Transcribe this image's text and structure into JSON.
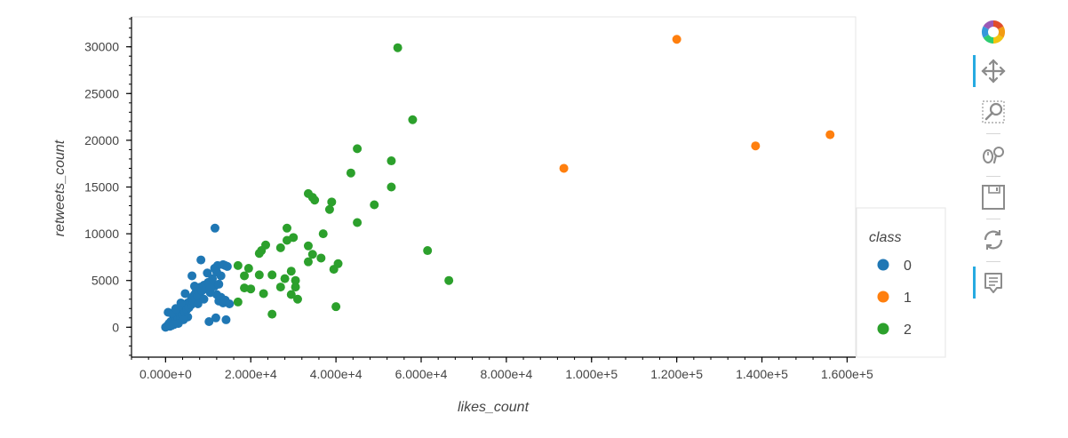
{
  "chart_data": {
    "type": "scatter",
    "title": "",
    "xlabel": "likes_count",
    "ylabel": "retweets_count",
    "xlim": [
      -8000,
      162000
    ],
    "ylim": [
      -3200,
      33200
    ],
    "xticks": [
      0,
      20000,
      40000,
      60000,
      80000,
      100000,
      120000,
      140000,
      160000
    ],
    "xtick_labels": [
      "0.000e+0",
      "2.000e+4",
      "4.000e+4",
      "6.000e+4",
      "8.000e+4",
      "1.000e+5",
      "1.200e+5",
      "1.400e+5",
      "1.600e+5"
    ],
    "yticks": [
      0,
      5000,
      10000,
      15000,
      20000,
      25000,
      30000
    ],
    "ytick_labels": [
      "0",
      "5000",
      "10000",
      "15000",
      "20000",
      "25000",
      "30000"
    ],
    "grid": false,
    "legend": {
      "title": "class",
      "placement": "right"
    },
    "series": [
      {
        "name": "0",
        "color": "#1f77b4",
        "points": [
          [
            0,
            0
          ],
          [
            300,
            100
          ],
          [
            500,
            200
          ],
          [
            800,
            400
          ],
          [
            1000,
            300
          ],
          [
            1200,
            600
          ],
          [
            1500,
            200
          ],
          [
            1800,
            800
          ],
          [
            2000,
            500
          ],
          [
            2200,
            1000
          ],
          [
            2500,
            700
          ],
          [
            2800,
            1200
          ],
          [
            3000,
            900
          ],
          [
            3200,
            1500
          ],
          [
            3500,
            1100
          ],
          [
            3800,
            1800
          ],
          [
            4000,
            1300
          ],
          [
            4200,
            2000
          ],
          [
            4500,
            1600
          ],
          [
            4800,
            2300
          ],
          [
            5000,
            1900
          ],
          [
            5200,
            2600
          ],
          [
            5500,
            2100
          ],
          [
            5800,
            2800
          ],
          [
            6000,
            2400
          ],
          [
            6200,
            3200
          ],
          [
            6500,
            2700
          ],
          [
            6800,
            3500
          ],
          [
            7000,
            3000
          ],
          [
            7200,
            3800
          ],
          [
            7500,
            3300
          ],
          [
            8000,
            3600
          ],
          [
            8200,
            4300
          ],
          [
            8500,
            3900
          ],
          [
            9000,
            4500
          ],
          [
            9500,
            4100
          ],
          [
            10000,
            4800
          ],
          [
            10500,
            3700
          ],
          [
            11000,
            5200
          ],
          [
            11500,
            4400
          ],
          [
            12000,
            3500
          ],
          [
            12500,
            2800
          ],
          [
            13000,
            3200
          ],
          [
            13500,
            2600
          ],
          [
            14000,
            2900
          ],
          [
            15000,
            2500
          ],
          [
            600,
            1600
          ],
          [
            1400,
            1500
          ],
          [
            2400,
            2000
          ],
          [
            3600,
            2600
          ],
          [
            4600,
            3600
          ],
          [
            6200,
            5500
          ],
          [
            6800,
            4400
          ],
          [
            8300,
            7200
          ],
          [
            9800,
            5800
          ],
          [
            11500,
            6300
          ],
          [
            12200,
            6600
          ],
          [
            13000,
            5500
          ],
          [
            13500,
            6700
          ],
          [
            14000,
            6600
          ],
          [
            14500,
            6500
          ],
          [
            12500,
            4600
          ],
          [
            12000,
            5900
          ],
          [
            11600,
            10600
          ],
          [
            10500,
            4200
          ],
          [
            9000,
            3000
          ],
          [
            7600,
            2500
          ],
          [
            5200,
            1100
          ],
          [
            4200,
            800
          ],
          [
            3000,
            400
          ],
          [
            2000,
            300
          ],
          [
            1000,
            100
          ],
          [
            10200,
            600
          ],
          [
            11800,
            1000
          ],
          [
            14200,
            800
          ]
        ]
      },
      {
        "name": "1",
        "color": "#ff7f0e",
        "points": [
          [
            93500,
            17000
          ],
          [
            120000,
            30800
          ],
          [
            138500,
            19400
          ],
          [
            156000,
            20600
          ]
        ]
      },
      {
        "name": "2",
        "color": "#2ca02c",
        "points": [
          [
            54500,
            29900
          ],
          [
            58000,
            22200
          ],
          [
            45000,
            19100
          ],
          [
            53000,
            17800
          ],
          [
            43500,
            16500
          ],
          [
            53000,
            15000
          ],
          [
            33500,
            14300
          ],
          [
            34500,
            13900
          ],
          [
            35000,
            13600
          ],
          [
            39000,
            13400
          ],
          [
            38500,
            12600
          ],
          [
            49000,
            13100
          ],
          [
            45000,
            11200
          ],
          [
            28500,
            10600
          ],
          [
            37000,
            10000
          ],
          [
            30000,
            9600
          ],
          [
            28500,
            9300
          ],
          [
            23500,
            8800
          ],
          [
            27000,
            8500
          ],
          [
            33500,
            8700
          ],
          [
            22500,
            8200
          ],
          [
            22000,
            7900
          ],
          [
            61500,
            8200
          ],
          [
            34500,
            7800
          ],
          [
            36500,
            7400
          ],
          [
            33500,
            7000
          ],
          [
            40500,
            6800
          ],
          [
            39500,
            6200
          ],
          [
            17000,
            6600
          ],
          [
            19500,
            6300
          ],
          [
            29500,
            6000
          ],
          [
            18500,
            5500
          ],
          [
            22000,
            5600
          ],
          [
            25000,
            5600
          ],
          [
            28000,
            5200
          ],
          [
            30500,
            5000
          ],
          [
            66500,
            5000
          ],
          [
            20000,
            4100
          ],
          [
            18500,
            4200
          ],
          [
            27000,
            4300
          ],
          [
            30500,
            4300
          ],
          [
            23000,
            3600
          ],
          [
            29500,
            3500
          ],
          [
            31000,
            3000
          ],
          [
            17000,
            2700
          ],
          [
            25000,
            1400
          ],
          [
            40000,
            2200
          ]
        ]
      }
    ]
  },
  "toolbar": {
    "logo_icon": "bokeh-logo-icon",
    "tools": [
      "pan-tool-icon",
      "box-zoom-tool-icon",
      "wheel-zoom-tool-icon",
      "save-tool-icon",
      "reset-tool-icon",
      "hover-tool-icon"
    ]
  }
}
